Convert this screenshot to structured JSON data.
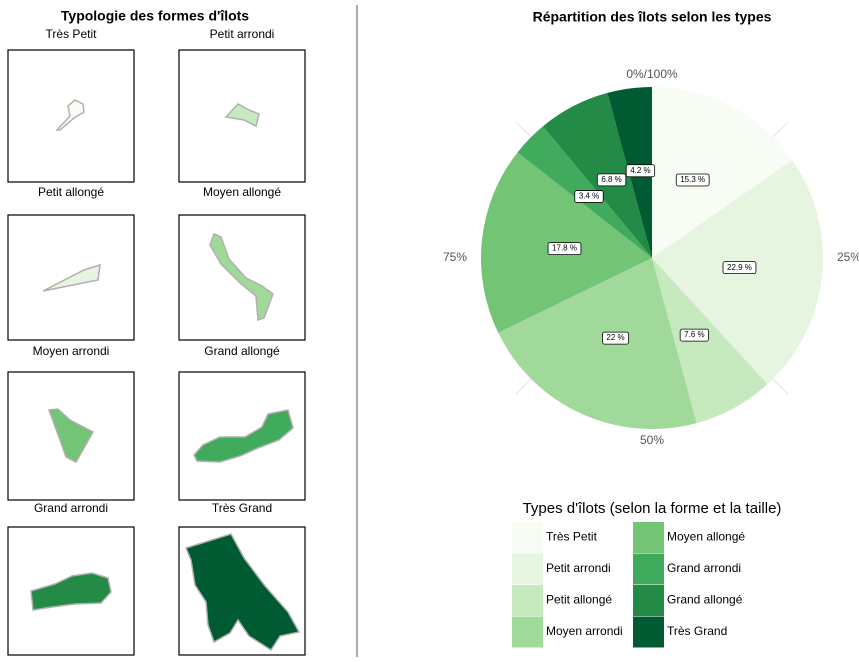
{
  "typology": {
    "title": "Typologie des formes d'îlots",
    "panels": [
      "Très Petit",
      "Petit arrondi",
      "Petit allongé",
      "Moyen allongé",
      "Moyen arrondi",
      "Grand allongé",
      "Grand arrondi",
      "Très Grand"
    ]
  },
  "chart_data": {
    "type": "pie",
    "title": "Répartition des îlots selon les types",
    "categories": [
      "Très Petit",
      "Petit arrondi",
      "Petit allongé",
      "Moyen arrondi",
      "Moyen allongé",
      "Grand arrondi",
      "Grand allongé",
      "Très Grand"
    ],
    "values": [
      15.3,
      22.9,
      7.6,
      22,
      17.8,
      3.4,
      6.8,
      4.2
    ],
    "value_labels": [
      "15.3 %",
      "22.9 %",
      "7.6 %",
      "22 %",
      "17.8 %",
      "3.4 %",
      "6.8 %",
      "4.2 %"
    ],
    "colors": [
      "#f7fcf5",
      "#e5f5e0",
      "#c7e9c0",
      "#a1d99b",
      "#74c476",
      "#41ab5d",
      "#238b45",
      "#005a32"
    ],
    "ticks": [
      {
        "value": 0,
        "label": "0%/100%"
      },
      {
        "value": 25,
        "label": "25%"
      },
      {
        "value": 50,
        "label": "50%"
      },
      {
        "value": 75,
        "label": "75%"
      }
    ],
    "legend_title": "Types d'îlots (selon la forme et la taille)"
  }
}
